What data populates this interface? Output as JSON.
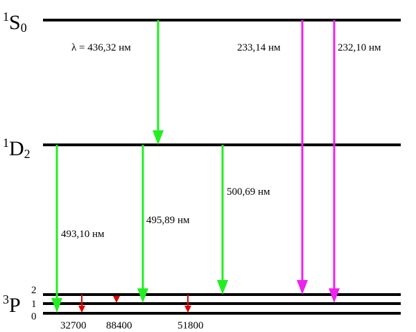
{
  "levels": [
    {
      "multiplicity": "1",
      "letter": "S",
      "j": "0"
    },
    {
      "multiplicity": "1",
      "letter": "D",
      "j": "2"
    },
    {
      "multiplicity": "3",
      "letter": "P",
      "sublevels": [
        "2",
        "1",
        "0"
      ]
    }
  ],
  "transitions": [
    {
      "label": "λ = 436,32 нм"
    },
    {
      "label": "233,14 нм"
    },
    {
      "label": "232,10 нм"
    },
    {
      "label": "493,10 нм"
    },
    {
      "label": "495,89 нм"
    },
    {
      "label": "500,69 нм"
    }
  ],
  "fine_structure": [
    "32700",
    "88400",
    "51800"
  ]
}
